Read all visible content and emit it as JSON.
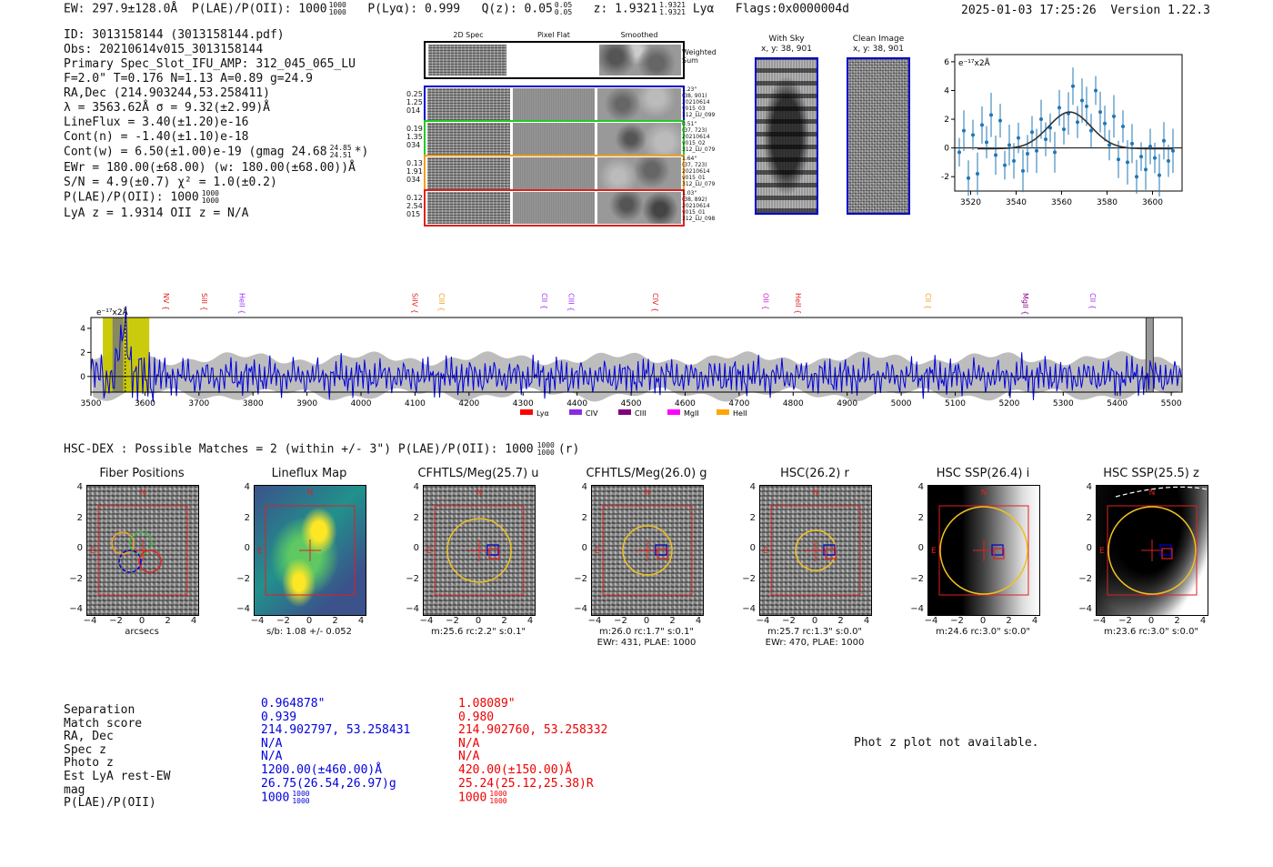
{
  "header": {
    "ew": "EW: 297.9±128.0Å",
    "plae": "P(LAE)/P(OII): 1000",
    "plae_sup": "1000",
    "plae_sub": "1000",
    "plya": "P(Lyα): 0.999",
    "qz": "Q(z): 0.05",
    "qz_sup": "0.05",
    "qz_sub": "0.05",
    "z": "z: 1.9321",
    "z_sup": "1.9321",
    "z_sub": "1.9321",
    "z_line": "Lyα",
    "flags": "Flags:0x0000004d",
    "datetime": "2025-01-03 17:25:26",
    "version": "Version 1.22.3"
  },
  "info": {
    "lines": [
      "ID: 3013158144 (3013158144.pdf)",
      "Obs: 20210614v015_3013158144",
      "Primary Spec_Slot_IFU_AMP: 312_045_065_LU",
      "F=2.0\"  T=0.176  N=1.13  A=0.89  g=24.9",
      "RA,Dec (214.903244,53.258411)",
      "λ = 3563.62Å  σ = 9.32(±2.99)Å",
      "LineFlux = 3.40(±1.20)e-16",
      "Cont(n) = -1.40(±1.10)e-18",
      "Cont(w) = 6.50(±1.00)e-19 (gmag 24.68",
      "EWr = 180.00(±68.00) (w: 180.00(±68.00))Å",
      "S/N = 4.9(±0.7)  χ² = 1.0(±0.2)",
      "P(LAE)/P(OII): 1000",
      "LyA z = 1.9314  OII z = N/A"
    ],
    "gmag_sup": "24.85",
    "gmag_sub": "24.51",
    "gmag_tail": "*)",
    "plae_sup": "1000",
    "plae_sub": "1000"
  },
  "cutouts": {
    "col_titles": [
      "2D Spec",
      "Pixel Flat",
      "Smoothed"
    ],
    "weighted_sum": "Weighted Sum",
    "rows": [
      {
        "left": [
          "0.25",
          "1.25",
          "014"
        ],
        "right": [
          "1.23\"",
          "(38, 901)",
          "20210614",
          "v015_03",
          "312_LU_099"
        ],
        "color": "#0000cc"
      },
      {
        "left": [
          "0.19",
          "1.35",
          "034"
        ],
        "right": [
          "0.51\"",
          "(37, 723)",
          "20210614",
          "v015_02",
          "312_LU_079"
        ],
        "color": "#22cc22"
      },
      {
        "left": [
          "0.13",
          "1.91",
          "034"
        ],
        "right": [
          "1.64\"",
          "(37, 723)",
          "20210614",
          "v015_01",
          "312_LU_079"
        ],
        "color": "#f0a020"
      },
      {
        "left": [
          "0.12",
          "2.54",
          "015"
        ],
        "right": [
          "1.03\"",
          "(38, 892)",
          "20210614",
          "v015_01",
          "312_LU_098"
        ],
        "color": "#e02020"
      }
    ],
    "with_sky_title": "With Sky",
    "with_sky_sub": "x, y: 38, 901",
    "clean_title": "Clean Image",
    "clean_sub": "x, y: 38, 901"
  },
  "chart_data": [
    {
      "type": "scatter",
      "title": "",
      "ylabel": "e⁻¹⁷x2Å",
      "xlim": [
        3513,
        3613
      ],
      "ylim": [
        -3.0,
        6.5
      ],
      "xticks": [
        "3520",
        "3540",
        "3560",
        "3580",
        "3600"
      ],
      "yticks": [
        "-2",
        "0",
        "2",
        "4",
        "6"
      ],
      "x": [
        3515,
        3517,
        3519,
        3521,
        3523,
        3525,
        3527,
        3529,
        3531,
        3533,
        3535,
        3537,
        3539,
        3541,
        3543,
        3545,
        3547,
        3549,
        3551,
        3553,
        3555,
        3557,
        3559,
        3561,
        3563,
        3565,
        3567,
        3569,
        3571,
        3573,
        3575,
        3577,
        3579,
        3581,
        3583,
        3585,
        3587,
        3589,
        3591,
        3593,
        3595,
        3597,
        3599,
        3601,
        3603,
        3605,
        3607,
        3609
      ],
      "y": [
        -0.3,
        1.2,
        -2.1,
        0.9,
        -1.8,
        1.6,
        0.4,
        2.3,
        -0.5,
        1.9,
        -1.2,
        0.2,
        -0.9,
        0.7,
        -1.6,
        -0.4,
        1.1,
        -0.2,
        2.0,
        0.6,
        1.4,
        -0.3,
        2.8,
        1.3,
        2.4,
        4.3,
        1.8,
        3.3,
        2.9,
        1.2,
        4.0,
        2.5,
        1.7,
        0.2,
        2.2,
        -0.8,
        1.5,
        -1.0,
        0.3,
        -2.0,
        -0.6,
        -1.5,
        0.1,
        -0.7,
        -1.9,
        0.5,
        -0.9,
        -0.2
      ],
      "fit": {
        "amplitude": 2.55,
        "center": 3563.6,
        "sigma": 9.3,
        "baseline": -0.05
      }
    },
    {
      "type": "line",
      "ylabel": "e⁻¹⁷x2Å",
      "xlim": [
        3500,
        5520
      ],
      "ylim": [
        -1.3,
        4.9
      ],
      "xticks": [
        "3500",
        "3600",
        "3700",
        "3800",
        "3900",
        "4000",
        "4100",
        "4200",
        "4300",
        "4400",
        "4500",
        "4600",
        "4700",
        "4800",
        "4900",
        "5000",
        "5100",
        "5200",
        "5300",
        "5400",
        "5500"
      ],
      "yticks": [
        "0",
        "2",
        "4"
      ],
      "line_markers": [
        {
          "name": "NV",
          "x": 3635,
          "color": "#e02020"
        },
        {
          "name": "SiII",
          "x": 3705,
          "color": "#e02020"
        },
        {
          "name": "HeII",
          "x": 3775,
          "color": "#9b30ff"
        },
        {
          "name": "SiIV",
          "x": 4095,
          "color": "#e02020"
        },
        {
          "name": "CIII",
          "x": 4145,
          "color": "#f0a020"
        },
        {
          "name": "CII",
          "x": 4335,
          "color": "#9b30ff"
        },
        {
          "name": "CIII",
          "x": 4385,
          "color": "#9b30ff"
        },
        {
          "name": "CIV",
          "x": 4540,
          "color": "#e02020"
        },
        {
          "name": "OII",
          "x": 4745,
          "color": "#d020d0"
        },
        {
          "name": "HeII",
          "x": 4805,
          "color": "#e02020"
        },
        {
          "name": "CII",
          "x": 5045,
          "color": "#f0a020"
        },
        {
          "name": "MgII",
          "x": 5225,
          "color": "#8b008b"
        },
        {
          "name": "CII",
          "x": 5350,
          "color": "#9b30ff"
        }
      ],
      "legend": [
        {
          "name": "Lyα",
          "color": "#ff0000"
        },
        {
          "name": "CIV",
          "color": "#8a2be2"
        },
        {
          "name": "CIII",
          "color": "#800080"
        },
        {
          "name": "MgII",
          "color": "#ff00ff"
        },
        {
          "name": "HeII",
          "color": "#ffa500"
        }
      ],
      "highlight_range": [
        3522,
        3608
      ],
      "emission_wavelength": 3563.6,
      "masked_wavelength": 5460
    }
  ],
  "matches": {
    "summary": "HSC-DEX : Possible Matches = 2 (within +/- 3\")  P(LAE)/P(OII): 1000",
    "summary_sup": "1000",
    "summary_sub": "1000",
    "summary_tail": "(r)",
    "panels": [
      {
        "title": "Fiber Positions",
        "caption1": "arcsecs",
        "caption2": ""
      },
      {
        "title": "Lineflux Map",
        "caption1": "s/b: 1.08 +/- 0.052",
        "caption2": ""
      },
      {
        "title": "CFHTLS/Meg(25.7) u",
        "caption1": "m:25.6 rc:2.2\"  s:0.1\"",
        "caption2": ""
      },
      {
        "title": "CFHTLS/Meg(26.0) g",
        "caption1": "m:26.0 rc:1.7\"  s:0.1\"",
        "caption2": "EWr: 431, PLAE: 1000"
      },
      {
        "title": "HSC(26.2) r",
        "caption1": "m:25.7 rc:1.3\"  s:0.0\"",
        "caption2": "EWr: 470, PLAE: 1000"
      },
      {
        "title": "HSC SSP(26.4) i",
        "caption1": "m:24.6 rc:3.0\"  s:0.0\"",
        "caption2": ""
      },
      {
        "title": "HSC SSP(25.5) z",
        "caption1": "m:23.6 rc:3.0\"  s:0.0\"",
        "caption2": ""
      }
    ],
    "axis_ticks_x": [
      "−4",
      "−2",
      "0",
      "2",
      "4"
    ],
    "axis_ticks_y": [
      "4",
      "2",
      "0",
      "−2",
      "−4"
    ],
    "n_label": "N",
    "e_label": "E"
  },
  "table": {
    "labels": [
      "Separation",
      "Match score",
      "RA, Dec",
      "Spec z",
      "Photo z",
      "Est LyA rest-EW",
      "mag",
      "P(LAE)/P(OII)"
    ],
    "blue": [
      "0.964878\"",
      "0.939",
      "214.902797, 53.258431",
      "N/A",
      "N/A",
      "1200.00(±460.00)Å",
      "26.75(26.54,26.97)g",
      "1000"
    ],
    "red": [
      "1.08089\"",
      "0.980",
      "214.902760, 53.258332",
      "N/A",
      "N/A",
      "420.00(±150.00)Å",
      "25.24(25.12,25.38)R",
      "1000"
    ],
    "plae_sup": "1000",
    "plae_sub": "1000",
    "blue_color": "#0000dd",
    "red_color": "#ee0000"
  },
  "photz": {
    "message": "Phot z plot not available."
  }
}
